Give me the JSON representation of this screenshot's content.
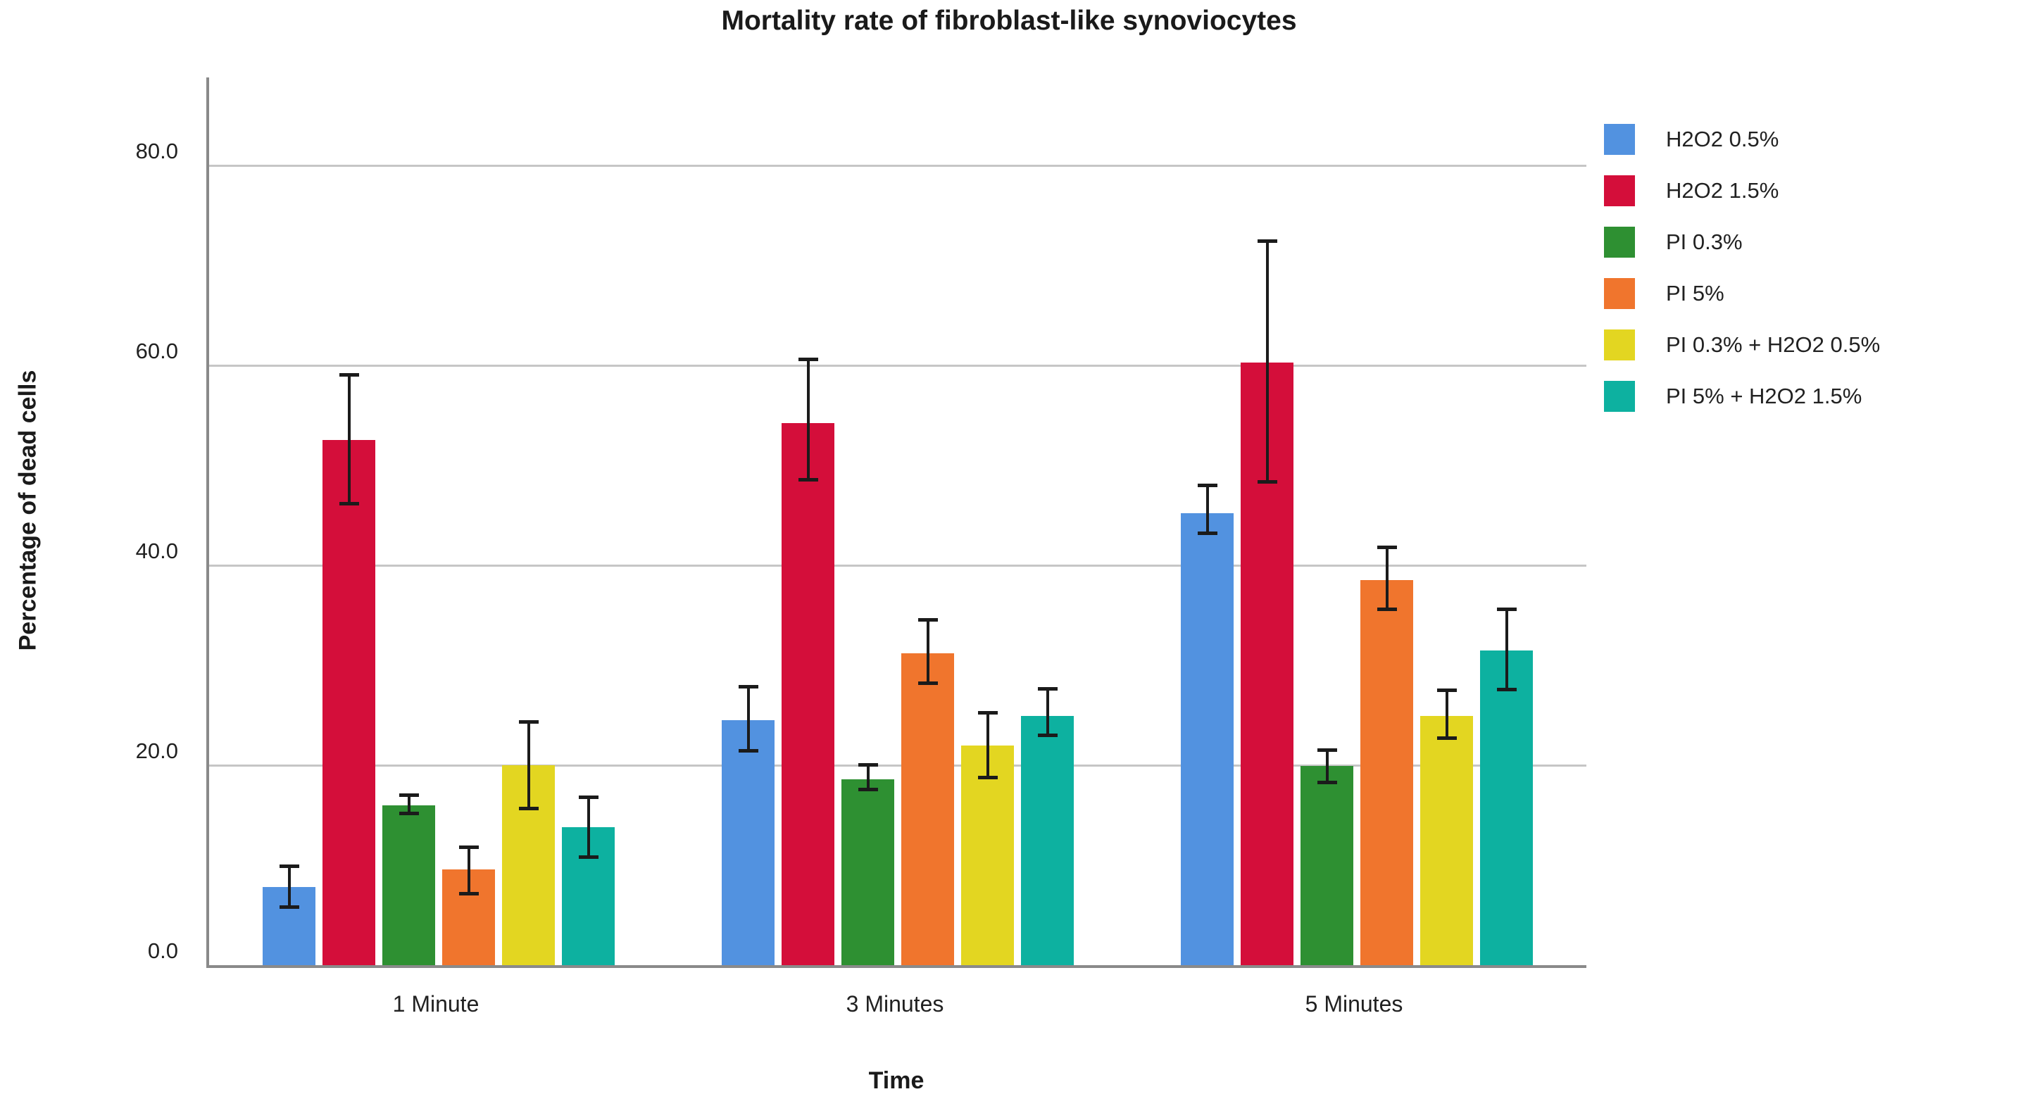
{
  "chart_data": {
    "type": "bar",
    "title": "Mortality rate of fibroblast-like synoviocytes",
    "xlabel": "Time",
    "ylabel": "Percentage of dead cells",
    "categories": [
      "1 Minute",
      "3 Minutes",
      "5 Minutes"
    ],
    "y_ticks": [
      0,
      20,
      40,
      60,
      80
    ],
    "y_tick_labels": [
      "0.0",
      "20.0",
      "40.0",
      "60.0",
      "80.0"
    ],
    "ylim": [
      0,
      88.8
    ],
    "grid": "horizontal",
    "legend_position": "right",
    "error_bars": true,
    "series": [
      {
        "name": "H2O2 0.5%",
        "color": "#5292E0",
        "values": [
          7.8,
          24.5,
          45.2
        ],
        "error_low": [
          5.6,
          21.3,
          43.0
        ],
        "error_high": [
          10.1,
          28.0,
          48.2
        ]
      },
      {
        "name": "H2O2 1.5%",
        "color": "#D40E3A",
        "values": [
          52.5,
          54.2,
          60.3
        ],
        "error_low": [
          46.0,
          48.4,
          48.2
        ],
        "error_high": [
          59.2,
          60.8,
          72.6
        ]
      },
      {
        "name": "PI 0.3%",
        "color": "#2E9032",
        "values": [
          16.0,
          18.6,
          19.9
        ],
        "error_low": [
          15.0,
          17.4,
          18.1
        ],
        "error_high": [
          17.2,
          20.2,
          21.7
        ]
      },
      {
        "name": "PI 5%",
        "color": "#F0752D",
        "values": [
          9.6,
          31.2,
          38.5
        ],
        "error_low": [
          7.0,
          28.0,
          35.4
        ],
        "error_high": [
          12.0,
          34.7,
          42.0
        ]
      },
      {
        "name": "PI 0.3% + H2O2 0.5%",
        "color": "#E3D621",
        "values": [
          20.0,
          22.0,
          24.9
        ],
        "error_low": [
          15.5,
          18.6,
          22.5
        ],
        "error_high": [
          24.5,
          25.4,
          27.7
        ]
      },
      {
        "name": "PI 5% + H2O2 1.5%",
        "color": "#0DB1A0",
        "values": [
          13.8,
          24.9,
          31.5
        ],
        "error_low": [
          10.6,
          22.8,
          27.4
        ],
        "error_high": [
          17.0,
          27.8,
          35.8
        ]
      }
    ],
    "style": {
      "grid_color": "#c6c6c6",
      "axis_color": "#8a8a8a",
      "error_bar_color": "#1b1b1b",
      "text_color": "#212121",
      "background": "#ffffff"
    }
  }
}
